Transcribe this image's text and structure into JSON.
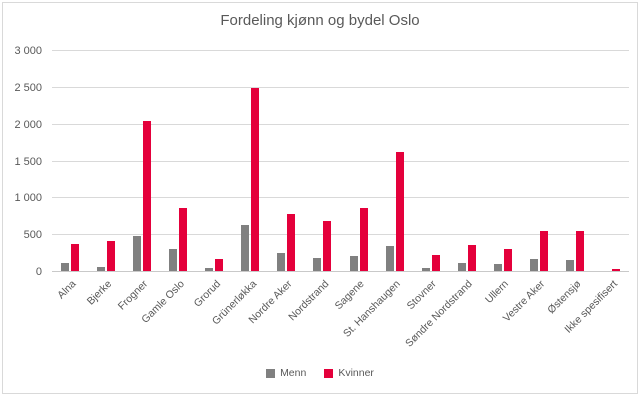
{
  "chart_data": {
    "type": "bar",
    "title": "Fordeling kjønn og bydel Oslo",
    "categories": [
      "Alna",
      "Bjerke",
      "Frogner",
      "Gamle Oslo",
      "Grorud",
      "Grünerløkka",
      "Nordre Aker",
      "Nordstrand",
      "Sagene",
      "St. Hanshaugen",
      "Stovner",
      "Søndre Nordstrand",
      "Ullern",
      "Vestre Aker",
      "Østensjø",
      "Ikke spesifisert"
    ],
    "series": [
      {
        "name": "Menn",
        "color": "#808080",
        "values": [
          110,
          50,
          470,
          300,
          40,
          630,
          250,
          175,
          200,
          340,
          45,
          110,
          90,
          165,
          150,
          0
        ]
      },
      {
        "name": "Kvinner",
        "color": "#e4003b",
        "values": [
          360,
          410,
          2040,
          860,
          160,
          2480,
          780,
          680,
          860,
          1620,
          215,
          350,
          300,
          540,
          540,
          25
        ]
      }
    ],
    "xlabel": "",
    "ylabel": "",
    "ylim": [
      0,
      3000
    ],
    "ytick_step": 500,
    "ytick_labels": [
      "0",
      "500",
      "1 000",
      "1 500",
      "2 000",
      "2 500",
      "3 000"
    ],
    "grid": true,
    "legend_position": "bottom",
    "colors": {
      "title_text": "#595959",
      "axis_text": "#595959",
      "gridline": "#d9d9d9",
      "frame_border": "#d9d9d9",
      "background": "#ffffff"
    }
  }
}
